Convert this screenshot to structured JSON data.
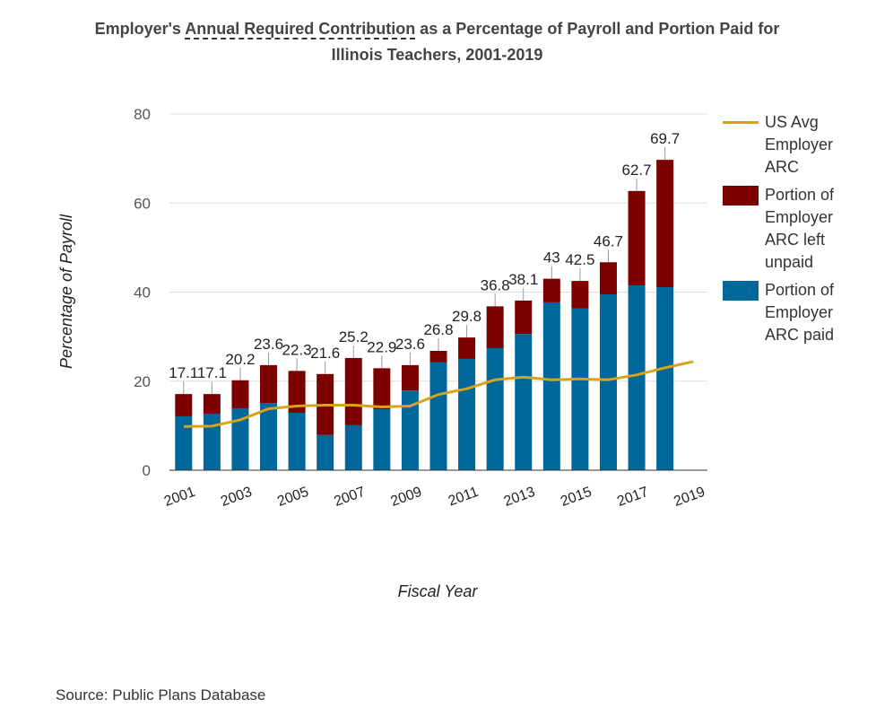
{
  "chart_data": {
    "type": "bar",
    "title": [
      "Employer's ",
      "Annual Required Contribution",
      " as a Percentage of Payroll and Portion Paid for Illinois Teachers, 2001-2019"
    ],
    "x_label": "Fiscal Year",
    "y_label": "Percentage of Payroll",
    "source": "Source: Public Plans Database",
    "categories": [
      "2001",
      null,
      "2003",
      null,
      "2005",
      null,
      "2007",
      null,
      "2009",
      null,
      "2011",
      null,
      "2013",
      null,
      "2015",
      null,
      "2017",
      null,
      "2019"
    ],
    "series": [
      {
        "name": "Portion of Employer ARC paid",
        "color": "#00679a",
        "values": [
          12.1,
          12.7,
          13.9,
          15.1,
          12.9,
          7.9,
          10.1,
          13.7,
          17.9,
          24.2,
          25.0,
          27.4,
          30.6,
          37.7,
          36.3,
          39.5,
          41.5,
          41.1,
          null
        ]
      },
      {
        "name": "Portion of Employer ARC left unpaid",
        "color": "#7c0000",
        "values": [
          5.0,
          4.4,
          6.3,
          8.5,
          9.4,
          13.7,
          15.1,
          9.2,
          5.7,
          2.6,
          4.8,
          9.4,
          7.5,
          5.3,
          6.2,
          7.2,
          21.2,
          28.6,
          null
        ]
      },
      {
        "name": "US Avg Employer ARC",
        "color": "#d9a21b",
        "type": "line",
        "values": [
          9.8,
          9.9,
          11.3,
          13.8,
          14.4,
          14.6,
          14.6,
          14.2,
          14.4,
          17.0,
          18.3,
          20.3,
          20.9,
          20.3,
          20.5,
          20.3,
          21.4,
          23.0,
          24.4
        ]
      }
    ],
    "totals": [
      17.1,
      17.1,
      20.2,
      23.6,
      22.3,
      21.6,
      25.2,
      22.9,
      23.6,
      26.8,
      29.8,
      36.8,
      38.1,
      43,
      42.5,
      46.7,
      62.7,
      69.7,
      null
    ],
    "ylim": [
      0,
      80
    ],
    "yticks": [
      0,
      20,
      40,
      60,
      80
    ],
    "grid": true
  }
}
